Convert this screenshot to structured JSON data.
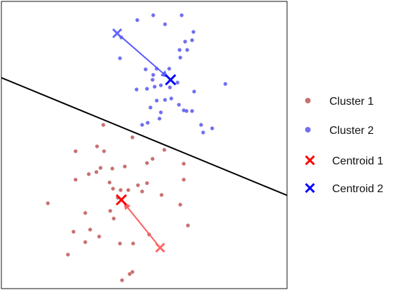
{
  "chart_data": {
    "type": "scatter",
    "title": "",
    "xlabel": "",
    "ylabel": "",
    "axes_ticks": false,
    "xlim": [
      0,
      413
    ],
    "ylim": [
      0,
      413
    ],
    "legend_placement": "right",
    "series": [
      {
        "name": "Cluster 1",
        "color": "#c97070",
        "points": [
          [
            147,
            178
          ],
          [
            189,
            196
          ],
          [
            107,
            216
          ],
          [
            138,
            209
          ],
          [
            148,
            216
          ],
          [
            235,
            214
          ],
          [
            218,
            227
          ],
          [
            210,
            233
          ],
          [
            178,
            238
          ],
          [
            263,
            234
          ],
          [
            143,
            240
          ],
          [
            160,
            241
          ],
          [
            126,
            249
          ],
          [
            137,
            246
          ],
          [
            107,
            257
          ],
          [
            263,
            257
          ],
          [
            210,
            262
          ],
          [
            156,
            261
          ],
          [
            197,
            265
          ],
          [
            161,
            270
          ],
          [
            172,
            272
          ],
          [
            183,
            272
          ],
          [
            203,
            274
          ],
          [
            231,
            279
          ],
          [
            168,
            283
          ],
          [
            67,
            291
          ],
          [
            258,
            293
          ],
          [
            157,
            302
          ],
          [
            121,
            305
          ],
          [
            162,
            313
          ],
          [
            128,
            329
          ],
          [
            104,
            332
          ],
          [
            269,
            323
          ],
          [
            141,
            339
          ],
          [
            213,
            336
          ],
          [
            121,
            347
          ],
          [
            171,
            349
          ],
          [
            190,
            349
          ],
          [
            96,
            365
          ],
          [
            189,
            390
          ],
          [
            185,
            393
          ],
          [
            174,
            402
          ]
        ]
      },
      {
        "name": "Cluster 2",
        "color": "#7070ef",
        "points": [
          [
            196,
            27
          ],
          [
            219,
            20
          ],
          [
            260,
            20
          ],
          [
            236,
            33
          ],
          [
            173,
            52
          ],
          [
            277,
            44
          ],
          [
            265,
            58
          ],
          [
            275,
            56
          ],
          [
            257,
            70
          ],
          [
            268,
            70
          ],
          [
            258,
            81
          ],
          [
            171,
            82
          ],
          [
            242,
            97
          ],
          [
            208,
            98
          ],
          [
            224,
            97
          ],
          [
            219,
            106
          ],
          [
            218,
            113
          ],
          [
            230,
            121
          ],
          [
            254,
            117
          ],
          [
            323,
            119
          ],
          [
            195,
            127
          ],
          [
            210,
            126
          ],
          [
            221,
            123
          ],
          [
            243,
            124
          ],
          [
            278,
            130
          ],
          [
            236,
            142
          ],
          [
            245,
            140
          ],
          [
            224,
            143
          ],
          [
            215,
            153
          ],
          [
            256,
            149
          ],
          [
            263,
            157
          ],
          [
            267,
            158
          ],
          [
            275,
            158
          ],
          [
            288,
            178
          ],
          [
            304,
            183
          ],
          [
            230,
            160
          ],
          [
            203,
            178
          ],
          [
            211,
            175
          ],
          [
            291,
            189
          ],
          [
            228,
            169
          ]
        ]
      }
    ],
    "centroids": [
      {
        "name": "Centroid 1",
        "color": "#ff0000",
        "initial": [
          229,
          355
        ],
        "final": [
          173,
          286
        ],
        "initial_color": "#ff6666"
      },
      {
        "name": "Centroid 2",
        "color": "#0000ff",
        "initial": [
          167,
          46
        ],
        "final": [
          244,
          113
        ],
        "initial_color": "#6666ff"
      }
    ],
    "decision_boundary": {
      "from": [
        0,
        110
      ],
      "to": [
        413,
        280
      ],
      "color": "#000000"
    },
    "legend": [
      {
        "label": "Cluster 1",
        "marker": "dot",
        "color": "#c97070"
      },
      {
        "label": "Cluster 2",
        "marker": "dot",
        "color": "#7070ef"
      },
      {
        "label": "Centroid 1",
        "marker": "x",
        "color": "#ff0000"
      },
      {
        "label": "Centroid 2",
        "marker": "x",
        "color": "#0000ff"
      }
    ]
  }
}
